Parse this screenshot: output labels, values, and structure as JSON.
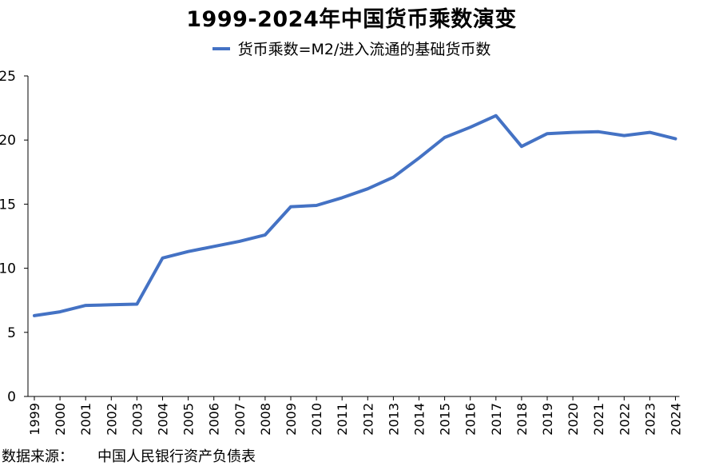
{
  "chart_data": {
    "type": "line",
    "title": "1999-2024年中国货币乘数演变",
    "xlabel": "",
    "ylabel": "",
    "ylim": [
      0,
      25
    ],
    "yticks": [
      0,
      5,
      10,
      15,
      20,
      25
    ],
    "grid": false,
    "legend_position": "top-center",
    "x": [
      1999,
      2000,
      2001,
      2002,
      2003,
      2004,
      2005,
      2006,
      2007,
      2008,
      2009,
      2010,
      2011,
      2012,
      2013,
      2014,
      2015,
      2016,
      2017,
      2018,
      2019,
      2020,
      2021,
      2022,
      2023,
      2024
    ],
    "x_labels": [
      "1999",
      "2000",
      "2001",
      "2002",
      "2003",
      "2004",
      "2005",
      "2006",
      "2007",
      "2008",
      "2009",
      "2010",
      "2011",
      "2012",
      "2013",
      "2014",
      "2015",
      "2016",
      "2017",
      "2018",
      "2019",
      "2020",
      "2021",
      "2022",
      "2023",
      "2024"
    ],
    "series": [
      {
        "name": "货币乘数=M2/进入流通的基础货币数",
        "color": "#4472c4",
        "values": [
          6.3,
          6.6,
          7.1,
          7.15,
          7.2,
          10.8,
          11.3,
          11.7,
          12.1,
          12.6,
          14.8,
          14.9,
          15.5,
          16.2,
          17.1,
          18.6,
          20.2,
          21.0,
          21.9,
          19.5,
          20.5,
          20.6,
          20.65,
          20.35,
          20.6,
          20.1
        ]
      }
    ],
    "source_label": "数据来源：",
    "source_text": "中国人民银行资产负债表"
  }
}
